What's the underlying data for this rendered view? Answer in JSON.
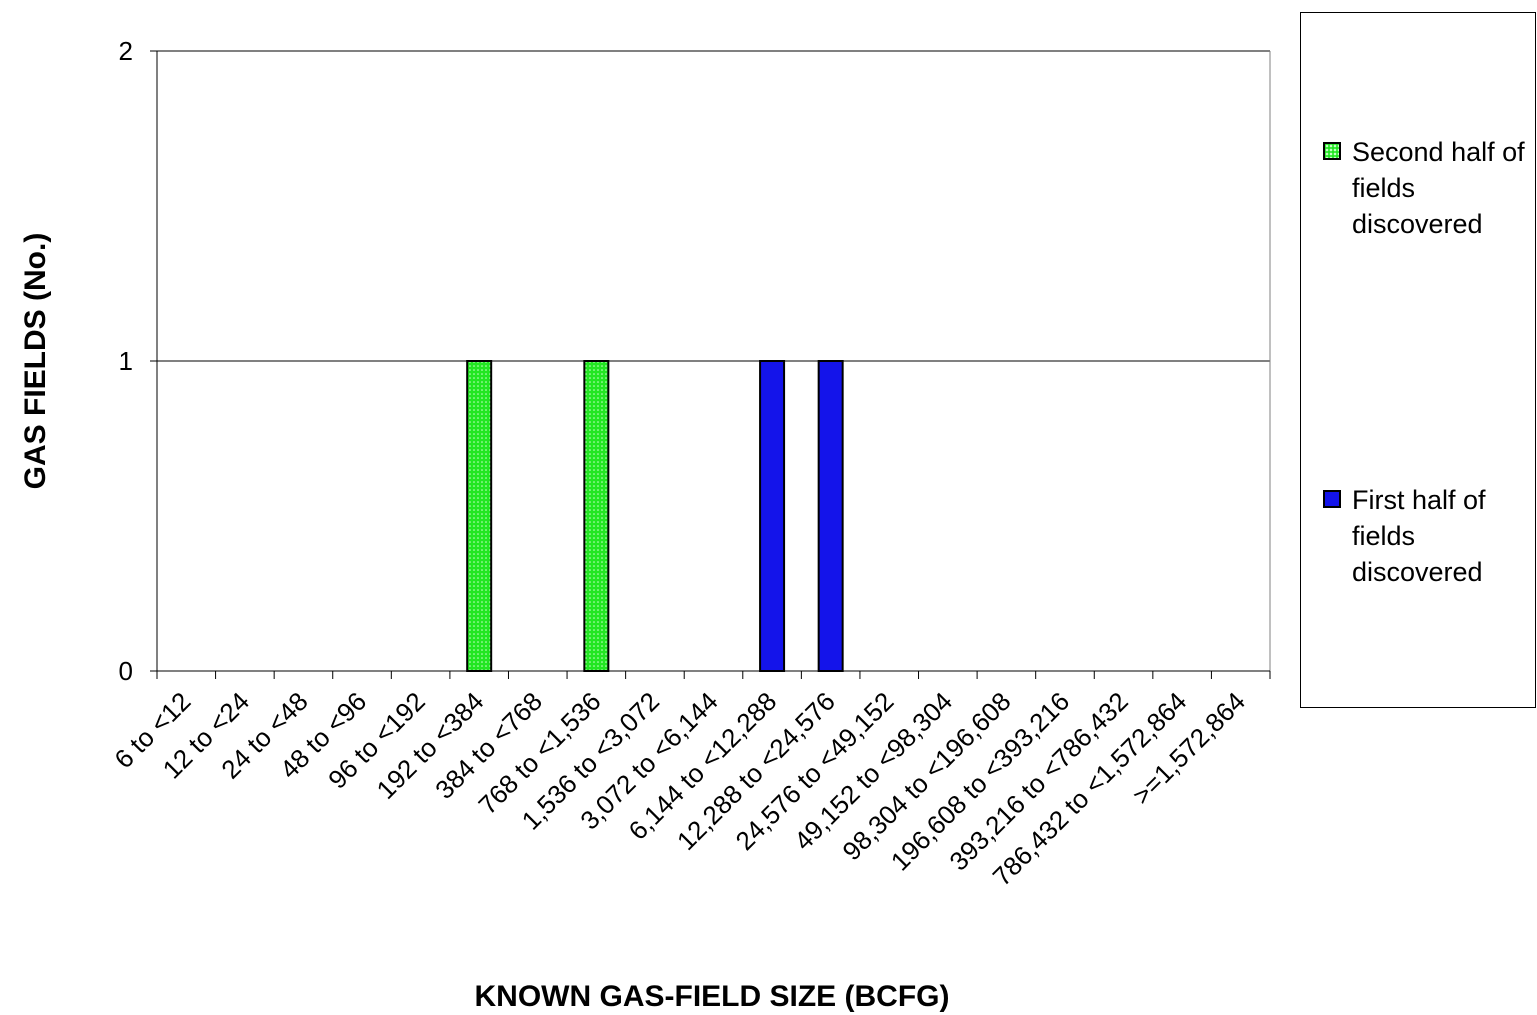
{
  "chart_data": {
    "type": "bar",
    "stacked": true,
    "xlabel": "KNOWN GAS-FIELD SIZE (BCFG)",
    "ylabel": "GAS FIELDS (No.)",
    "ylim": [
      0,
      2
    ],
    "yticks": [
      0,
      1,
      2
    ],
    "grid": "horizontal major gridlines",
    "legend_position": "right",
    "categories": [
      "6 to <12",
      "12 to <24",
      "24 to <48",
      "48 to <96",
      "96 to <192",
      "192 to <384",
      "384 to <768",
      "768 to <1,536",
      "1,536 to <3,072",
      "3,072 to <6,144",
      "6,144 to <12,288",
      "12,288 to <24,576",
      "24,576 to <49,152",
      "49,152 to <98,304",
      "98,304 to <196,608",
      "196,608 to <393,216",
      "393,216 to <786,432",
      "786,432 to <1,572,864",
      ">=1,572,864"
    ],
    "series": [
      {
        "name": "First half of fields discovered",
        "color": "#1414ea",
        "values": [
          0,
          0,
          0,
          0,
          0,
          0,
          0,
          0,
          0,
          0,
          1,
          1,
          0,
          0,
          0,
          0,
          0,
          0,
          0
        ]
      },
      {
        "name": "Second half of fields discovered",
        "color": "#22e622",
        "pattern": "dotted",
        "values": [
          0,
          0,
          0,
          0,
          0,
          1,
          0,
          1,
          0,
          0,
          0,
          0,
          0,
          0,
          0,
          0,
          0,
          0,
          0
        ]
      }
    ]
  },
  "legend": {
    "items": [
      {
        "label": "Second half of fields discovered"
      },
      {
        "label": "First half of fields discovered"
      }
    ]
  }
}
